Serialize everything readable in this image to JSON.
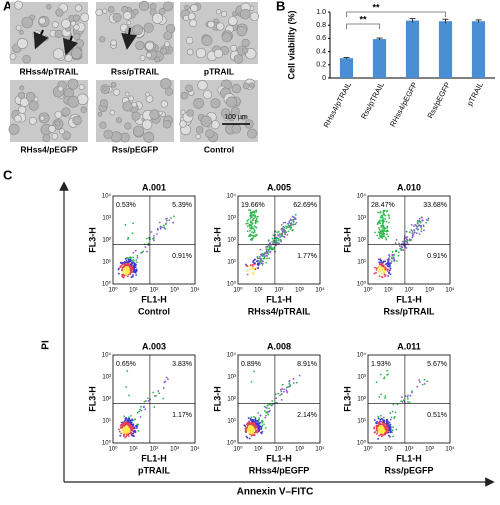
{
  "panel_a": {
    "label": "A",
    "images": [
      "RHss4/pTRAIL",
      "Rss/pTRAIL",
      "pTRAIL",
      "RHss4/pEGFP",
      "Rss/pEGFP",
      "Control"
    ],
    "scale_bar": "100 µm"
  },
  "chart_data": {
    "type": "bar",
    "label": "B",
    "ylabel": "Cell viability (%)",
    "categories": [
      "RHss4/pTRAIL",
      "Rss/pTRAIL",
      "RHss4/pEGFP",
      "Rss/pEGFP",
      "pTRAIL"
    ],
    "values": [
      0.3,
      0.59,
      0.87,
      0.86,
      0.86
    ],
    "errors": [
      0.01,
      0.015,
      0.03,
      0.03,
      0.02
    ],
    "color": "#4a8fd4",
    "ylim": [
      0,
      1
    ],
    "yticks": [
      0,
      0.2,
      0.4,
      0.6,
      0.8,
      {
        "value": 1,
        "label": "1.0"
      }
    ],
    "annotations": [
      "**",
      "**"
    ]
  },
  "panel_c": {
    "label": "C",
    "ylabel": "PI",
    "xlabel": "Annexin V–FITC",
    "plot_ylabel": "FL3-H",
    "plot_xlabel": "FL1-H",
    "axis_ticks": [
      "10⁰",
      "10¹",
      "10²",
      "10³",
      "10⁴"
    ],
    "plots": [
      {
        "title": "A.001",
        "sample": "Control",
        "ul": "0.53%",
        "ur": "5.39%",
        "lr": "0.91%"
      },
      {
        "title": "A.005",
        "sample": "RHss4/pTRAIL",
        "ul": "19.66%",
        "ur": "62.69%",
        "lr": "1.77%"
      },
      {
        "title": "A.010",
        "sample": "Rss/pTRAIL",
        "ul": "28.47%",
        "ur": "33.68%",
        "lr": "0.91%"
      },
      {
        "title": "A.003",
        "sample": "pTRAIL",
        "ul": "0.65%",
        "ur": "3.83%",
        "lr": "1.17%"
      },
      {
        "title": "A.008",
        "sample": "RHss4/pEGFP",
        "ul": "0.89%",
        "ur": "8.91%",
        "lr": "2.14%"
      },
      {
        "title": "A.011",
        "sample": "Rss/pEGFP",
        "ul": "1.93%",
        "ur": "5.67%",
        "lr": "0.51%"
      }
    ]
  }
}
